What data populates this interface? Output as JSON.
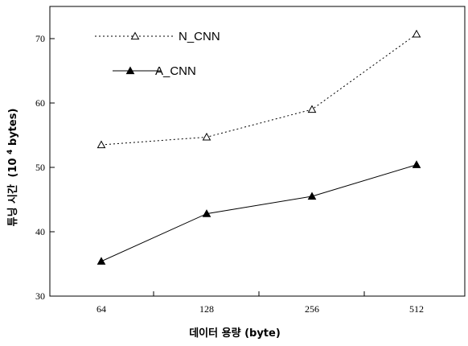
{
  "chart_data": {
    "type": "line",
    "categories": [
      "64",
      "128",
      "256",
      "512"
    ],
    "series": [
      {
        "name": "N_CNN",
        "values": [
          53.5,
          54.7,
          59.0,
          70.7
        ],
        "line_style": "dotted",
        "marker": "open-triangle",
        "color": "#000000"
      },
      {
        "name": "A_CNN",
        "values": [
          35.4,
          42.8,
          45.5,
          50.4
        ],
        "line_style": "solid",
        "marker": "filled-triangle",
        "color": "#000000"
      }
    ],
    "xlabel": "데이터 용량 (byte)",
    "ylabel_main": "튜닝 시간",
    "ylabel_unit_prefix": "(10",
    "ylabel_unit_exp": "4",
    "ylabel_unit_suffix": "bytes)",
    "ylim": [
      30,
      75
    ],
    "yticks": [
      30,
      40,
      50,
      60,
      70
    ],
    "legend_position": "top-left",
    "grid": false
  }
}
